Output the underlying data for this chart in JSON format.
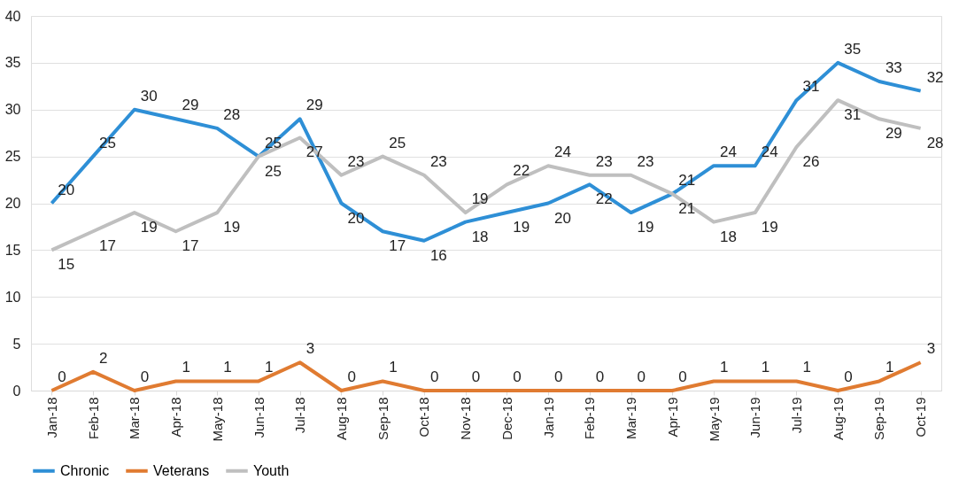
{
  "chart_data": {
    "type": "line",
    "categories": [
      "Jan-18",
      "Feb-18",
      "Mar-18",
      "Apr-18",
      "May-18",
      "Jun-18",
      "Jul-18",
      "Aug-18",
      "Sep-18",
      "Oct-18",
      "Nov-18",
      "Dec-18",
      "Jan-19",
      "Feb-19",
      "Mar-19",
      "Apr-19",
      "May-19",
      "Jun-19",
      "Jul-19",
      "Aug-19",
      "Sep-19",
      "Oct-19"
    ],
    "series": [
      {
        "name": "Chronic",
        "color": "#2e8fd6",
        "values": [
          20,
          25,
          30,
          29,
          28,
          25,
          29,
          20,
          17,
          16,
          18,
          19,
          20,
          22,
          19,
          21,
          24,
          24,
          31,
          35,
          33,
          32
        ]
      },
      {
        "name": "Veterans",
        "color": "#e07b31",
        "values": [
          0,
          2,
          0,
          1,
          1,
          1,
          3,
          0,
          1,
          0,
          0,
          0,
          0,
          0,
          0,
          0,
          1,
          1,
          1,
          0,
          1,
          3
        ]
      },
      {
        "name": "Youth",
        "color": "#bfbfbf",
        "values": [
          15,
          17,
          19,
          17,
          19,
          25,
          27,
          23,
          25,
          23,
          19,
          22,
          24,
          23,
          23,
          21,
          18,
          19,
          26,
          31,
          29,
          28
        ]
      }
    ],
    "ylim": [
      0,
      40
    ],
    "yticks": [
      0,
      5,
      10,
      15,
      20,
      25,
      30,
      35,
      40
    ],
    "grid": "y",
    "legend": "bottom",
    "data_labels": true,
    "marker": "none",
    "line_style": "solid"
  }
}
